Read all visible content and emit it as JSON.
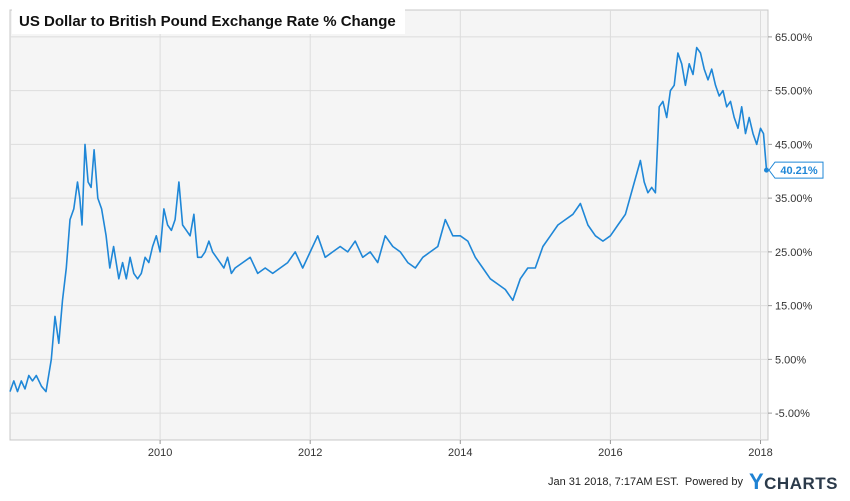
{
  "chart_data": {
    "type": "line",
    "title": "US Dollar to British Pound Exchange Rate % Change",
    "xlabel": "",
    "ylabel": "",
    "x_ticks": [
      "2010",
      "2012",
      "2014",
      "2016",
      "2018"
    ],
    "y_ticks": [
      "65.00%",
      "55.00%",
      "45.00%",
      "35.00%",
      "25.00%",
      "15.00%",
      "5.00%",
      "-5.00%"
    ],
    "y_tick_values": [
      65,
      55,
      45,
      35,
      25,
      15,
      5,
      -5
    ],
    "xlim": [
      2008.0,
      2018.1
    ],
    "ylim": [
      -10,
      70
    ],
    "grid": true,
    "line_color": "#1f87d7",
    "last_value_label": "40.21%",
    "series": [
      {
        "x": [
          2008.0,
          2008.05,
          2008.1,
          2008.15,
          2008.2,
          2008.25,
          2008.3,
          2008.35,
          2008.42,
          2008.48,
          2008.55,
          2008.6,
          2008.65,
          2008.7,
          2008.75,
          2008.8,
          2008.85,
          2008.9,
          2008.93,
          2008.96,
          2009.0,
          2009.04,
          2009.08,
          2009.12,
          2009.17,
          2009.22,
          2009.28,
          2009.33,
          2009.38,
          2009.45,
          2009.5,
          2009.55,
          2009.6,
          2009.65,
          2009.7,
          2009.75,
          2009.8,
          2009.85,
          2009.9,
          2009.95,
          2010.0,
          2010.05,
          2010.1,
          2010.15,
          2010.2,
          2010.25,
          2010.3,
          2010.35,
          2010.4,
          2010.45,
          2010.5,
          2010.55,
          2010.6,
          2010.65,
          2010.7,
          2010.75,
          2010.8,
          2010.85,
          2010.9,
          2010.95,
          2011.0,
          2011.1,
          2011.2,
          2011.3,
          2011.4,
          2011.5,
          2011.6,
          2011.7,
          2011.8,
          2011.9,
          2012.0,
          2012.1,
          2012.2,
          2012.3,
          2012.4,
          2012.5,
          2012.6,
          2012.7,
          2012.8,
          2012.9,
          2013.0,
          2013.1,
          2013.2,
          2013.3,
          2013.4,
          2013.5,
          2013.6,
          2013.7,
          2013.8,
          2013.9,
          2014.0,
          2014.1,
          2014.2,
          2014.3,
          2014.4,
          2014.5,
          2014.6,
          2014.7,
          2014.8,
          2014.9,
          2015.0,
          2015.1,
          2015.2,
          2015.3,
          2015.4,
          2015.5,
          2015.6,
          2015.7,
          2015.8,
          2015.9,
          2016.0,
          2016.1,
          2016.2,
          2016.3,
          2016.4,
          2016.45,
          2016.5,
          2016.55,
          2016.6,
          2016.65,
          2016.7,
          2016.75,
          2016.8,
          2016.85,
          2016.9,
          2016.95,
          2017.0,
          2017.05,
          2017.1,
          2017.15,
          2017.2,
          2017.25,
          2017.3,
          2017.35,
          2017.4,
          2017.45,
          2017.5,
          2017.55,
          2017.6,
          2017.65,
          2017.7,
          2017.75,
          2017.8,
          2017.85,
          2017.9,
          2017.95,
          2018.0,
          2018.04,
          2018.08
        ],
        "values": [
          -1,
          1,
          -1,
          1,
          -0.5,
          2,
          1,
          2,
          0,
          -1,
          5,
          13,
          8,
          16,
          22,
          31,
          33,
          38,
          35,
          30,
          45,
          38,
          37,
          44,
          35,
          33,
          28,
          22,
          26,
          20,
          23,
          20,
          24,
          21,
          20,
          21,
          24,
          23,
          26,
          28,
          25,
          33,
          30,
          29,
          31,
          38,
          30,
          29,
          28,
          32,
          24,
          24,
          25,
          27,
          25,
          24,
          23,
          22,
          24,
          21,
          22,
          23,
          24,
          21,
          22,
          21,
          22,
          23,
          25,
          22,
          25,
          28,
          24,
          25,
          26,
          25,
          27,
          24,
          25,
          23,
          28,
          26,
          25,
          23,
          22,
          24,
          25,
          26,
          31,
          28,
          28,
          27,
          24,
          22,
          20,
          19,
          18,
          16,
          20,
          22,
          22,
          26,
          28,
          30,
          31,
          32,
          34,
          30,
          28,
          27,
          28,
          30,
          32,
          37,
          42,
          38,
          36,
          37,
          36,
          52,
          53,
          50,
          55,
          56,
          62,
          60,
          56,
          60,
          58,
          63,
          62,
          59,
          57,
          59,
          56,
          54,
          55,
          52,
          53,
          50,
          48,
          52,
          47,
          50,
          47,
          45,
          48,
          47,
          40.21
        ]
      }
    ]
  },
  "footer": {
    "timestamp": "Jan 31 2018, 7:17AM EST.",
    "powered_by": "Powered by",
    "brand_y": "Y",
    "brand_rest": "CHARTS"
  }
}
